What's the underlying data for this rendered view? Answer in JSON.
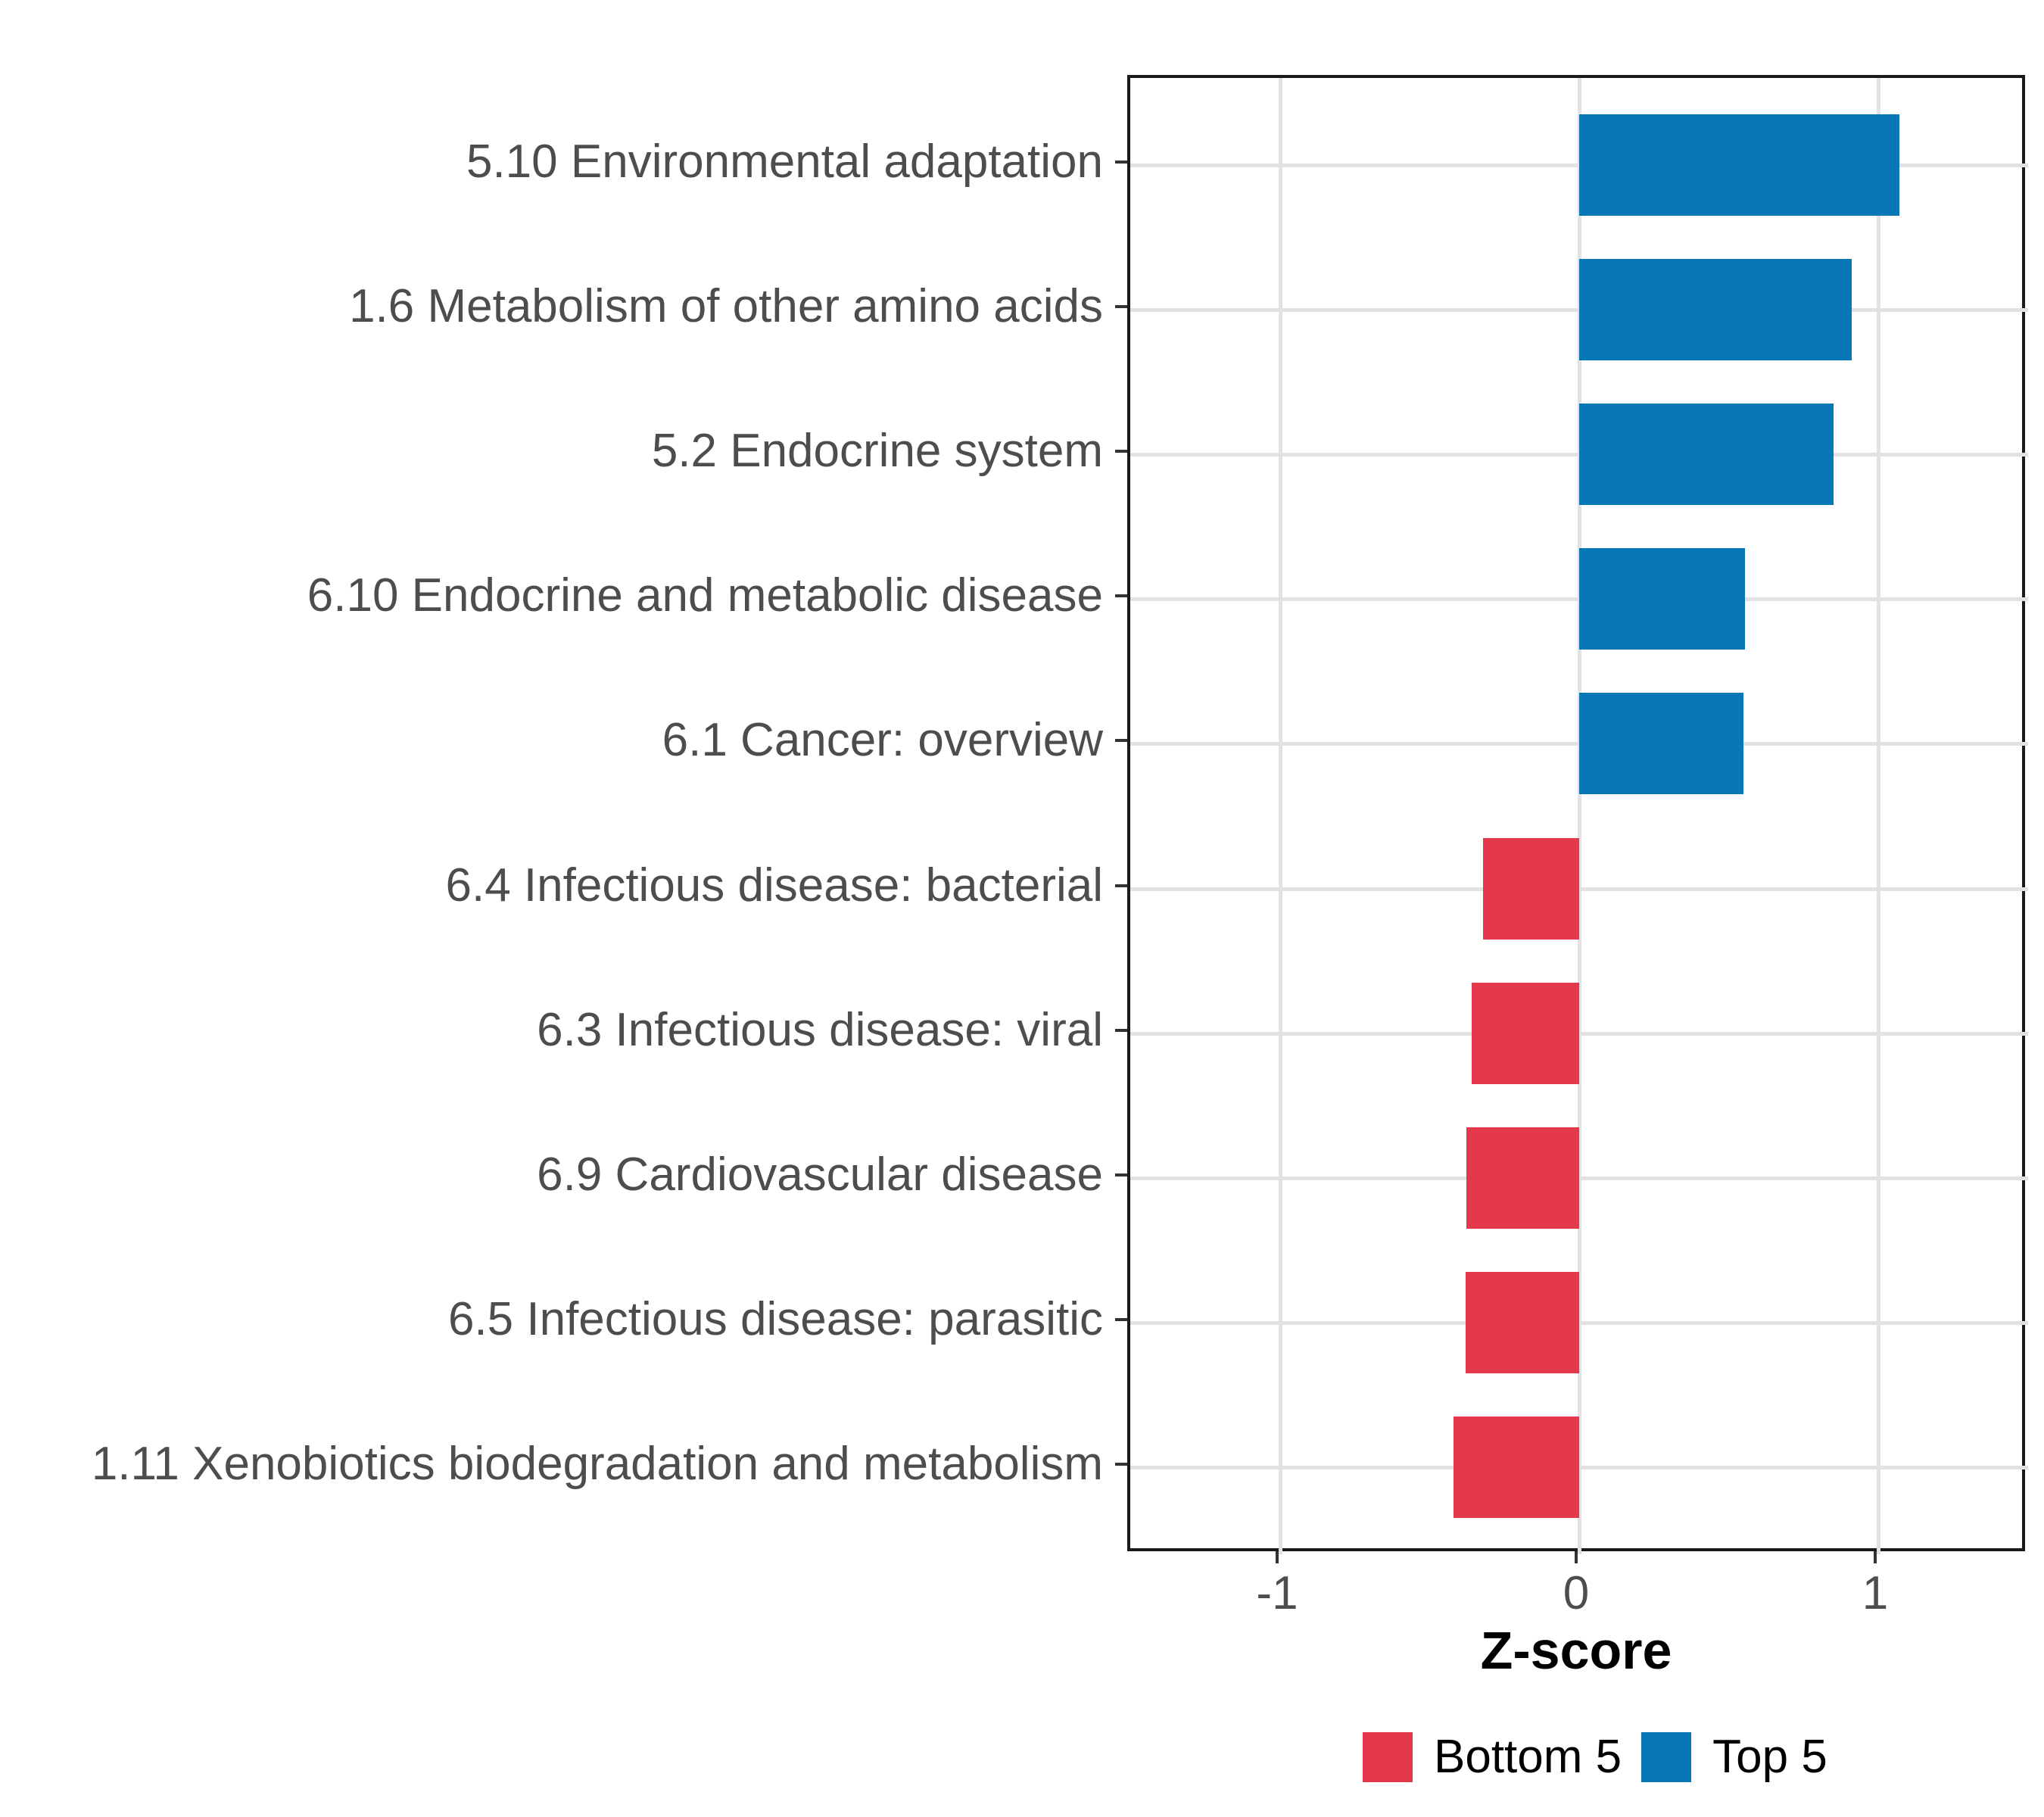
{
  "chart_data": {
    "type": "bar",
    "orientation": "horizontal",
    "title": "",
    "xlabel": "Z-score",
    "categories": [
      "5.10 Environmental adaptation",
      "1.6 Metabolism of other amino acids",
      "5.2 Endocrine system",
      "6.10 Endocrine and metabolic disease",
      "6.1 Cancer: overview",
      "6.4 Infectious disease: bacterial",
      "6.3 Infectious disease: viral",
      "6.9 Cardiovascular disease",
      "6.5 Infectious disease: parasitic",
      "1.11 Xenobiotics biodegradation and metabolism"
    ],
    "values": [
      1.07,
      0.91,
      0.85,
      0.555,
      0.55,
      -0.32,
      -0.36,
      -0.377,
      -0.38,
      -0.42
    ],
    "groups": [
      "Top 5",
      "Top 5",
      "Top 5",
      "Top 5",
      "Top 5",
      "Bottom 5",
      "Bottom 5",
      "Bottom 5",
      "Bottom 5",
      "Bottom 5"
    ],
    "xlim": [
      -1.5,
      1.5
    ],
    "xticks": [
      -1,
      0,
      1
    ],
    "xtick_labels": [
      "-1",
      "0",
      "1"
    ],
    "bar_fraction": 0.7,
    "grid": {
      "show_major": true,
      "show_minor": false,
      "color": "#e2e2e2"
    },
    "legend": {
      "position": "bottom",
      "entries": [
        {
          "label": "Bottom 5",
          "color": "#e4394b"
        },
        {
          "label": "Top 5",
          "color": "#0877b5"
        }
      ]
    }
  },
  "colors": {
    "top5_blue": "#0877b5",
    "bottom5_red": "#e4394b",
    "axis_text": "#4d4d4d",
    "axis_title": "#000000",
    "panel_border": "#1a1a1a",
    "gridline": "#e2e2e2",
    "background": "#ffffff"
  }
}
